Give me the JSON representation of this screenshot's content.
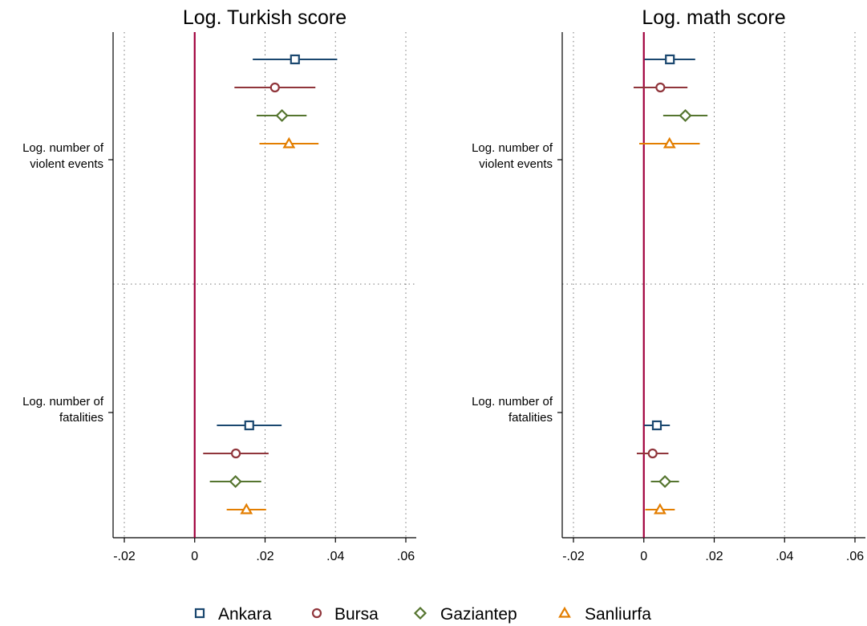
{
  "chart_data": [
    {
      "type": "coefficient-plot",
      "title": "Log. Turkish score",
      "xlim": [
        -0.023,
        0.063
      ],
      "xticks": [
        {
          "value": -0.02,
          "label": "-.02"
        },
        {
          "value": 0,
          "label": "0"
        },
        {
          "value": 0.02,
          "label": ".02"
        },
        {
          "value": 0.04,
          "label": ".04"
        },
        {
          "value": 0.06,
          "label": ".06"
        }
      ],
      "reference_line": 0,
      "grid": true,
      "groups": [
        {
          "label_lines": [
            "Log. number of",
            "violent events"
          ],
          "points": [
            {
              "series": "Ankara",
              "estimate": 0.0285,
              "ci": [
                0.0165,
                0.0405
              ]
            },
            {
              "series": "Bursa",
              "estimate": 0.0228,
              "ci": [
                0.0113,
                0.0343
              ]
            },
            {
              "series": "Gaziantep",
              "estimate": 0.0248,
              "ci": [
                0.0176,
                0.0318
              ]
            },
            {
              "series": "Sanliurfa",
              "estimate": 0.0268,
              "ci": [
                0.0184,
                0.0352
              ]
            }
          ]
        },
        {
          "label_lines": [
            "Log. number of",
            "fatalities"
          ],
          "points": [
            {
              "series": "Ankara",
              "estimate": 0.0155,
              "ci": [
                0.0063,
                0.0247
              ]
            },
            {
              "series": "Bursa",
              "estimate": 0.0117,
              "ci": [
                0.0024,
                0.021
              ]
            },
            {
              "series": "Gaziantep",
              "estimate": 0.0116,
              "ci": [
                0.0043,
                0.0189
              ]
            },
            {
              "series": "Sanliurfa",
              "estimate": 0.0147,
              "ci": [
                0.0091,
                0.0203
              ]
            }
          ]
        }
      ]
    },
    {
      "type": "coefficient-plot",
      "title": "Log. math score",
      "xlim": [
        -0.023,
        0.063
      ],
      "xticks": [
        {
          "value": -0.02,
          "label": "-.02"
        },
        {
          "value": 0,
          "label": "0"
        },
        {
          "value": 0.02,
          "label": ".02"
        },
        {
          "value": 0.04,
          "label": ".04"
        },
        {
          "value": 0.06,
          "label": ".06"
        }
      ],
      "reference_line": 0,
      "grid": true,
      "groups": [
        {
          "label_lines": [
            "Log. number of",
            "violent events"
          ],
          "points": [
            {
              "series": "Ankara",
              "estimate": 0.0074,
              "ci": [
                0.0002,
                0.0146
              ]
            },
            {
              "series": "Bursa",
              "estimate": 0.0047,
              "ci": [
                -0.0029,
                0.0124
              ]
            },
            {
              "series": "Gaziantep",
              "estimate": 0.0118,
              "ci": [
                0.0055,
                0.0181
              ]
            },
            {
              "series": "Sanliurfa",
              "estimate": 0.0073,
              "ci": [
                -0.0013,
                0.0159
              ]
            }
          ]
        },
        {
          "label_lines": [
            "Log. number of",
            "fatalities"
          ],
          "points": [
            {
              "series": "Ankara",
              "estimate": 0.0037,
              "ci": [
                0.0001,
                0.0074
              ]
            },
            {
              "series": "Bursa",
              "estimate": 0.0025,
              "ci": [
                -0.002,
                0.007
              ]
            },
            {
              "series": "Gaziantep",
              "estimate": 0.006,
              "ci": [
                0.002,
                0.01
              ]
            },
            {
              "series": "Sanliurfa",
              "estimate": 0.0046,
              "ci": [
                0.0004,
                0.0088
              ]
            }
          ]
        }
      ]
    }
  ],
  "legend": {
    "placement": "bottom",
    "items": [
      {
        "name": "Ankara",
        "marker": "square",
        "color": "#1a476f"
      },
      {
        "name": "Bursa",
        "marker": "circle",
        "color": "#90353b"
      },
      {
        "name": "Gaziantep",
        "marker": "diamond",
        "color": "#55752f"
      },
      {
        "name": "Sanliurfa",
        "marker": "triangle",
        "color": "#e37e00"
      }
    ]
  },
  "reference_line_color": "#a0003c"
}
